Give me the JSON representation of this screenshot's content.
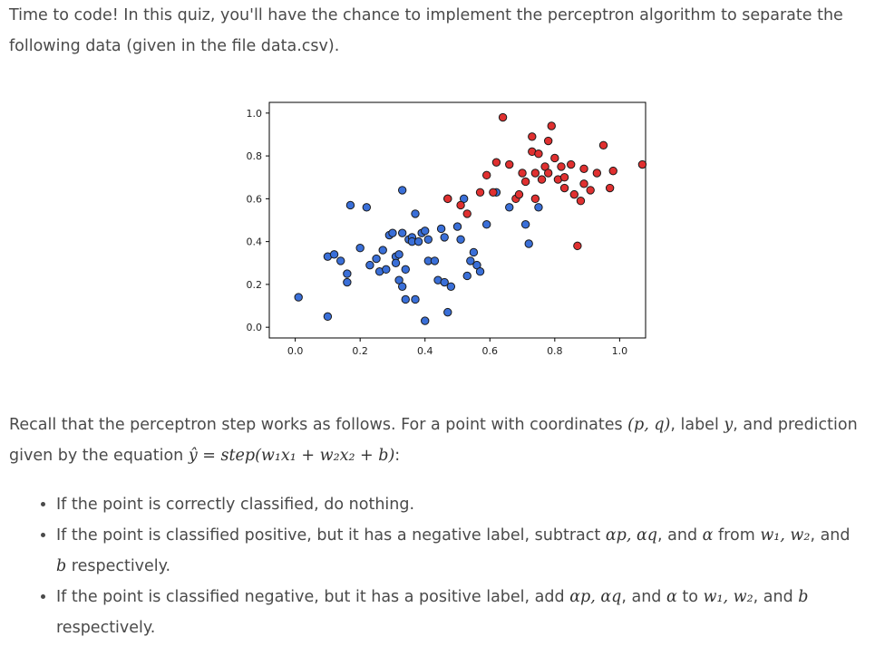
{
  "intro": {
    "text": "Time to code! In this quiz, you'll have the chance to implement the perceptron algorithm to separate the following data (given in the file data.csv)."
  },
  "recall": {
    "lead": "Recall that the perceptron step works as follows. For a point with coordinates ",
    "coords": "(p, q)",
    "mid1": ", label ",
    "label_var": "y",
    "mid2": ", and prediction given by the equation ",
    "equation": "ŷ = step(w₁x₁ + w₂x₂ + b)",
    "end": ":"
  },
  "rules": [
    {
      "parts": [
        "If the point is correctly classified, do nothing."
      ]
    },
    {
      "pre": "If the point is classified positive, but it has a negative label, subtract ",
      "terms": "αp, αq",
      "and": ", and ",
      "alpha": "α",
      "from": " from ",
      "weights": "w₁, w₂",
      "tail1": ",",
      "tail2": " and ",
      "b": "b",
      "tail3": " respectively."
    },
    {
      "pre": "If the point is classified negative, but it has a positive label, add ",
      "terms": "αp, αq",
      "and": ", and ",
      "alpha": "α",
      "to": " to ",
      "weights": "w₁, w₂",
      "and2": ", and ",
      "b": "b",
      "tail": " respectively."
    }
  ],
  "chart_data": {
    "type": "scatter",
    "xlim": [
      -0.08,
      1.08
    ],
    "ylim": [
      -0.05,
      1.05
    ],
    "xticks": [
      "0.0",
      "0.2",
      "0.4",
      "0.6",
      "0.8",
      "1.0"
    ],
    "yticks": [
      "0.0",
      "0.2",
      "0.4",
      "0.6",
      "0.8",
      "1.0"
    ],
    "grid": false,
    "series": [
      {
        "color": "#3a6fd8",
        "points": [
          [
            0.01,
            0.14
          ],
          [
            0.1,
            0.05
          ],
          [
            0.1,
            0.33
          ],
          [
            0.12,
            0.34
          ],
          [
            0.14,
            0.31
          ],
          [
            0.16,
            0.25
          ],
          [
            0.16,
            0.21
          ],
          [
            0.17,
            0.57
          ],
          [
            0.2,
            0.37
          ],
          [
            0.22,
            0.56
          ],
          [
            0.23,
            0.29
          ],
          [
            0.25,
            0.32
          ],
          [
            0.26,
            0.26
          ],
          [
            0.27,
            0.36
          ],
          [
            0.28,
            0.27
          ],
          [
            0.29,
            0.43
          ],
          [
            0.3,
            0.44
          ],
          [
            0.31,
            0.33
          ],
          [
            0.31,
            0.3
          ],
          [
            0.32,
            0.34
          ],
          [
            0.32,
            0.22
          ],
          [
            0.33,
            0.19
          ],
          [
            0.33,
            0.64
          ],
          [
            0.33,
            0.44
          ],
          [
            0.34,
            0.27
          ],
          [
            0.35,
            0.41
          ],
          [
            0.36,
            0.42
          ],
          [
            0.36,
            0.4
          ],
          [
            0.37,
            0.53
          ],
          [
            0.38,
            0.4
          ],
          [
            0.39,
            0.44
          ],
          [
            0.4,
            0.45
          ],
          [
            0.41,
            0.41
          ],
          [
            0.34,
            0.13
          ],
          [
            0.37,
            0.13
          ],
          [
            0.4,
            0.03
          ],
          [
            0.41,
            0.31
          ],
          [
            0.43,
            0.31
          ],
          [
            0.44,
            0.22
          ],
          [
            0.45,
            0.46
          ],
          [
            0.46,
            0.42
          ],
          [
            0.47,
            0.6
          ],
          [
            0.47,
            0.07
          ],
          [
            0.5,
            0.47
          ],
          [
            0.51,
            0.41
          ],
          [
            0.52,
            0.6
          ],
          [
            0.53,
            0.24
          ],
          [
            0.54,
            0.31
          ],
          [
            0.55,
            0.35
          ],
          [
            0.56,
            0.29
          ],
          [
            0.57,
            0.26
          ],
          [
            0.48,
            0.19
          ],
          [
            0.46,
            0.21
          ],
          [
            0.59,
            0.48
          ],
          [
            0.62,
            0.63
          ],
          [
            0.66,
            0.56
          ],
          [
            0.71,
            0.48
          ],
          [
            0.72,
            0.39
          ],
          [
            0.75,
            0.56
          ]
        ]
      },
      {
        "color": "#e03030",
        "points": [
          [
            0.47,
            0.6
          ],
          [
            0.51,
            0.57
          ],
          [
            0.53,
            0.53
          ],
          [
            0.57,
            0.63
          ],
          [
            0.59,
            0.71
          ],
          [
            0.62,
            0.77
          ],
          [
            0.64,
            0.98
          ],
          [
            0.66,
            0.76
          ],
          [
            0.68,
            0.6
          ],
          [
            0.69,
            0.62
          ],
          [
            0.7,
            0.72
          ],
          [
            0.71,
            0.68
          ],
          [
            0.73,
            0.82
          ],
          [
            0.73,
            0.89
          ],
          [
            0.74,
            0.72
          ],
          [
            0.74,
            0.6
          ],
          [
            0.75,
            0.81
          ],
          [
            0.77,
            0.75
          ],
          [
            0.78,
            0.72
          ],
          [
            0.79,
            0.94
          ],
          [
            0.8,
            0.79
          ],
          [
            0.81,
            0.69
          ],
          [
            0.82,
            0.75
          ],
          [
            0.83,
            0.65
          ],
          [
            0.83,
            0.7
          ],
          [
            0.85,
            0.76
          ],
          [
            0.86,
            0.62
          ],
          [
            0.87,
            0.38
          ],
          [
            0.88,
            0.59
          ],
          [
            0.89,
            0.67
          ],
          [
            0.89,
            0.74
          ],
          [
            0.91,
            0.64
          ],
          [
            0.93,
            0.72
          ],
          [
            0.95,
            0.85
          ],
          [
            0.97,
            0.65
          ],
          [
            0.98,
            0.73
          ],
          [
            1.07,
            0.76
          ],
          [
            0.78,
            0.87
          ],
          [
            0.61,
            0.63
          ],
          [
            0.76,
            0.69
          ]
        ]
      }
    ]
  }
}
